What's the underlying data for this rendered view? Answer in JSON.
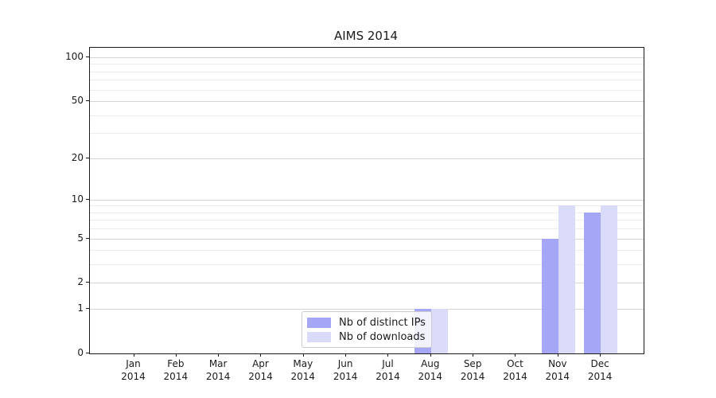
{
  "chart_data": {
    "type": "bar",
    "title": "AIMS 2014",
    "categories": [
      "Jan 2014",
      "Feb 2014",
      "Mar 2014",
      "Apr 2014",
      "May 2014",
      "Jun 2014",
      "Jul 2014",
      "Aug 2014",
      "Sep 2014",
      "Oct 2014",
      "Nov 2014",
      "Dec 2014"
    ],
    "series": [
      {
        "name": "Nb of distinct IPs",
        "color": "#a6a6f7",
        "values": [
          0,
          0,
          0,
          0,
          0,
          0,
          0,
          1,
          0,
          0,
          5,
          8
        ]
      },
      {
        "name": "Nb of downloads",
        "color": "#dadaf9",
        "values": [
          0,
          0,
          0,
          0,
          0,
          0,
          0,
          1,
          0,
          0,
          9,
          9
        ]
      }
    ],
    "xlabel": "",
    "ylabel": "",
    "yscale": "log1p",
    "yticks": [
      0,
      1,
      2,
      5,
      10,
      20,
      50,
      100
    ],
    "yticks_minor": [
      3,
      4,
      6,
      7,
      8,
      9,
      30,
      40,
      60,
      70,
      80,
      90
    ],
    "ylim": [
      0,
      116
    ],
    "grid": "horizontal",
    "legend_position": "inside lower-center",
    "colors": {
      "major_grid": "#d3d3d3",
      "minor_grid": "#ececec",
      "spine": "#1a1a1a",
      "background": "#ffffff"
    }
  }
}
